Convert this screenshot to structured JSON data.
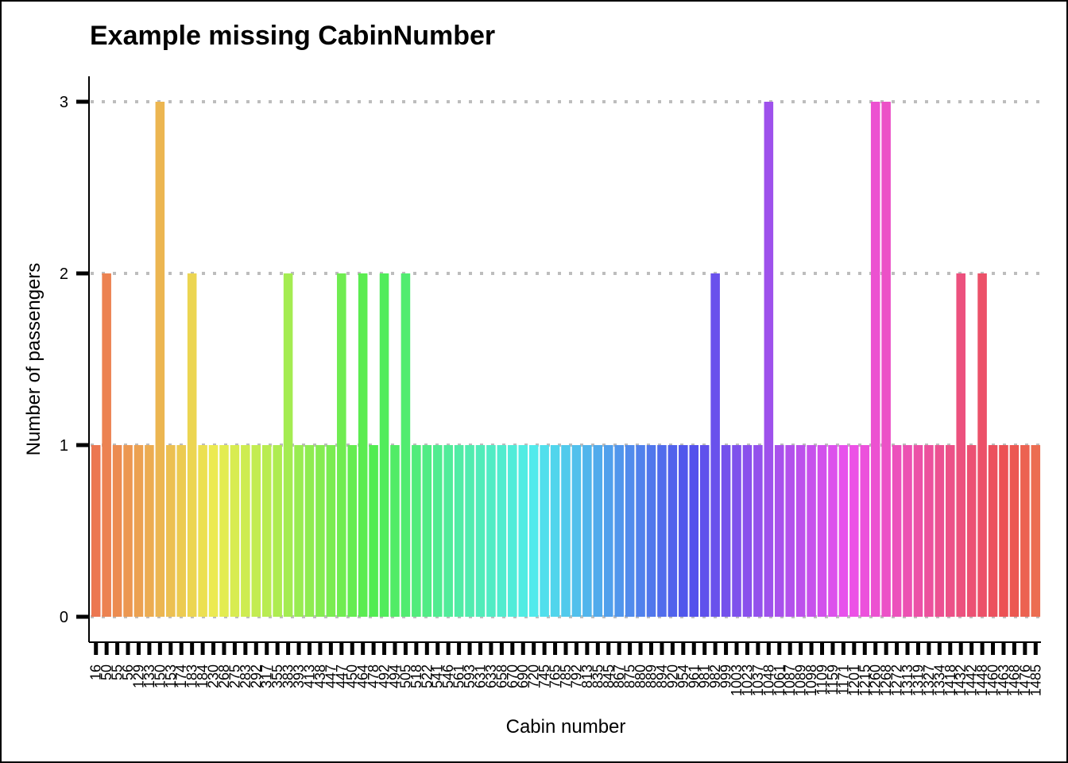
{
  "chart_data": {
    "type": "bar",
    "title": "Example missing CabinNumber",
    "xlabel": "Cabin number",
    "ylabel": "Number of passengers",
    "ylim": [
      0,
      3
    ],
    "yticks": [
      "0",
      "1",
      "2",
      "3"
    ],
    "grid": "horizontal dotted",
    "legend": "none",
    "categories": [
      "16",
      "50",
      "55",
      "56",
      "129",
      "133",
      "150",
      "153",
      "174",
      "183",
      "184",
      "230",
      "268",
      "275",
      "283",
      "292",
      "317",
      "355",
      "383",
      "393",
      "413",
      "438",
      "447",
      "447",
      "450",
      "464",
      "478",
      "492",
      "494",
      "505",
      "518",
      "522",
      "541",
      "546",
      "561",
      "593",
      "631",
      "633",
      "658",
      "670",
      "690",
      "720",
      "745",
      "765",
      "785",
      "792",
      "813",
      "835",
      "845",
      "867",
      "875",
      "880",
      "889",
      "894",
      "920",
      "954",
      "961",
      "981",
      "982",
      "999",
      "1003",
      "1023",
      "1037",
      "1048",
      "1061",
      "1087",
      "1089",
      "1098",
      "1109",
      "1159",
      "1171",
      "1201",
      "1215",
      "1260",
      "1268",
      "1272",
      "1313",
      "1319",
      "1327",
      "1334",
      "1418",
      "1432",
      "1442",
      "1448",
      "1460",
      "1463",
      "1468",
      "1476",
      "1485"
    ],
    "values": [
      1,
      2,
      1,
      1,
      1,
      1,
      3,
      1,
      1,
      2,
      1,
      1,
      1,
      1,
      1,
      1,
      1,
      1,
      2,
      1,
      1,
      1,
      1,
      2,
      1,
      2,
      1,
      2,
      1,
      2,
      1,
      1,
      1,
      1,
      1,
      1,
      1,
      1,
      1,
      1,
      1,
      1,
      1,
      1,
      1,
      1,
      1,
      1,
      1,
      1,
      1,
      1,
      1,
      1,
      1,
      1,
      1,
      1,
      2,
      1,
      1,
      1,
      1,
      3,
      1,
      1,
      1,
      1,
      1,
      1,
      1,
      1,
      1,
      3,
      3,
      1,
      1,
      1,
      1,
      1,
      1,
      2,
      1,
      2,
      1,
      1,
      1,
      1,
      1
    ]
  }
}
